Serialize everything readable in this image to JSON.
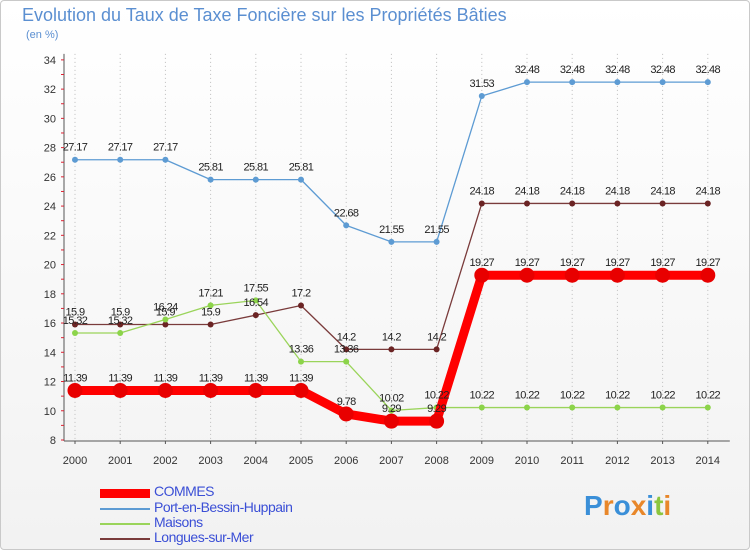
{
  "header": {
    "title": "Evolution du Taux de Taxe Foncière sur les Propriétés Bâties",
    "unit": "(en %)"
  },
  "logo": {
    "text": "Proxiti"
  },
  "chart_data": {
    "type": "line",
    "title": "Evolution du Taux de Taxe Foncière sur les Propriétés Bâties",
    "xlabel": "",
    "ylabel": "(en %)",
    "ylim": [
      8,
      34
    ],
    "yticks": [
      8,
      10,
      12,
      14,
      16,
      18,
      20,
      22,
      24,
      26,
      28,
      30,
      32,
      34
    ],
    "grid": "vertical dotted",
    "legend_position": "bottom-left",
    "categories": [
      "2000",
      "2001",
      "2002",
      "2003",
      "2004",
      "2005",
      "2006",
      "2007",
      "2008",
      "2009",
      "2010",
      "2011",
      "2012",
      "2013",
      "2014"
    ],
    "series": [
      {
        "name": "Port-en-Bessin-Huppain",
        "color": "#5d9bd3",
        "marker": "#5d9bd3",
        "values": [
          27.17,
          27.17,
          27.17,
          25.81,
          25.81,
          25.81,
          22.68,
          21.55,
          21.55,
          31.53,
          32.48,
          32.48,
          32.48,
          32.48,
          32.48
        ],
        "labels": [
          "27.17",
          "27.17",
          "27.17",
          "25.81",
          "25.81",
          "25.81",
          "22.68",
          "21.55",
          "21.55",
          "31.53",
          "32.48",
          "32.48",
          "32.48",
          "32.48",
          "32.48"
        ]
      },
      {
        "name": "Longues-sur-Mer",
        "color": "#7a3b3b",
        "marker": "#6b2424",
        "values": [
          15.9,
          15.9,
          15.9,
          15.9,
          16.54,
          17.2,
          14.2,
          14.2,
          14.2,
          24.18,
          24.18,
          24.18,
          24.18,
          24.18,
          24.18
        ],
        "labels": [
          "15.9",
          "15.9",
          "15.9",
          "15.9",
          "16.54",
          "17.2",
          "14.2",
          "14.2",
          "14.2",
          "24.18",
          "24.18",
          "24.18",
          "24.18",
          "24.18",
          "24.18"
        ]
      },
      {
        "name": "Maisons",
        "color": "#9ad45a",
        "marker": "#8cd44a",
        "values": [
          15.32,
          15.32,
          16.24,
          17.21,
          17.55,
          13.36,
          13.36,
          10.02,
          10.22,
          10.22,
          10.22,
          10.22,
          10.22,
          10.22,
          10.22
        ],
        "labels": [
          "15.32",
          "15.32",
          "16.24",
          "17.21",
          "17.55",
          "13.36",
          "13.36",
          "10.02",
          "10.22",
          "10.22",
          "10.22",
          "10.22",
          "10.22",
          "10.22",
          "10.22"
        ]
      },
      {
        "name": "COMMES",
        "color": "#ff0000",
        "marker": "#e80000",
        "values": [
          11.39,
          11.39,
          11.39,
          11.39,
          11.39,
          11.39,
          9.78,
          9.29,
          9.29,
          19.27,
          19.27,
          19.27,
          19.27,
          19.27,
          19.27
        ],
        "labels": [
          "11.39",
          "11.39",
          "11.39",
          "11.39",
          "11.39",
          "11.39",
          "9.78",
          "9.29",
          "9.29",
          "19.27",
          "19.27",
          "19.27",
          "19.27",
          "19.27",
          "19.27"
        ]
      }
    ],
    "legend": [
      "COMMES",
      "Port-en-Bessin-Huppain",
      "Maisons",
      "Longues-sur-Mer"
    ]
  }
}
